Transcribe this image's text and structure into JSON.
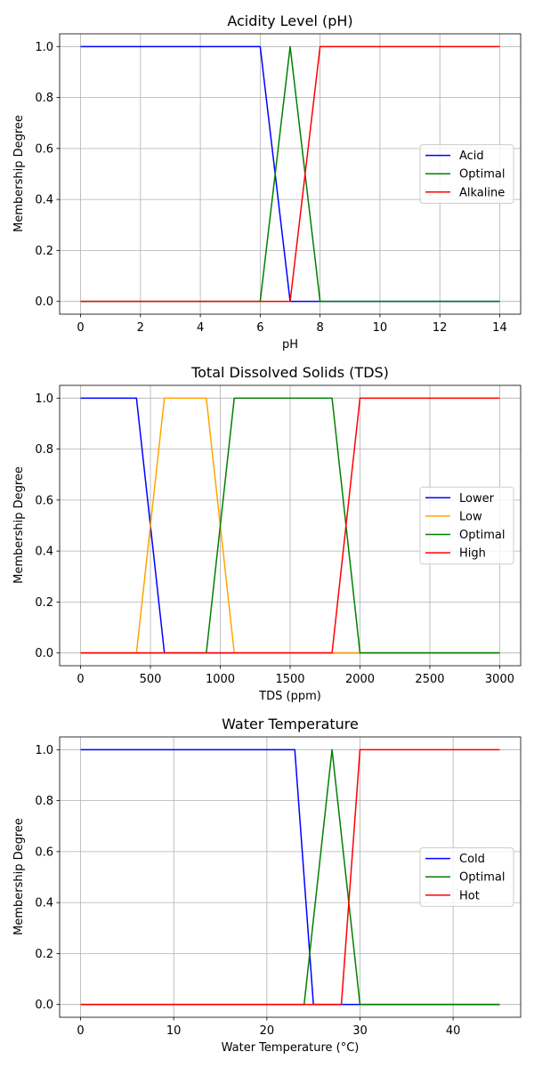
{
  "chart_data": [
    {
      "type": "line",
      "title": "Acidity Level (pH)",
      "xlabel": "pH",
      "ylabel": "Membership Degree",
      "xlim": [
        -0.7,
        14.7
      ],
      "ylim": [
        -0.05,
        1.05
      ],
      "xticks": [
        0,
        2,
        4,
        6,
        8,
        10,
        12,
        14
      ],
      "yticks": [
        0.0,
        0.2,
        0.4,
        0.6,
        0.8,
        1.0
      ],
      "xtick_labels": [
        "0",
        "2",
        "4",
        "6",
        "8",
        "10",
        "12",
        "14"
      ],
      "ytick_labels": [
        "0.0",
        "0.2",
        "0.4",
        "0.6",
        "0.8",
        "1.0"
      ],
      "grid": true,
      "legend_position": "center-right",
      "series": [
        {
          "name": "Acid",
          "color": "#0000ff",
          "x": [
            0,
            6,
            7,
            14
          ],
          "y": [
            1,
            1,
            0,
            0
          ]
        },
        {
          "name": "Optimal",
          "color": "#008000",
          "x": [
            0,
            6,
            7,
            8,
            14
          ],
          "y": [
            0,
            0,
            1,
            0,
            0
          ]
        },
        {
          "name": "Alkaline",
          "color": "#ff0000",
          "x": [
            0,
            7,
            8,
            14
          ],
          "y": [
            0,
            0,
            1,
            1
          ]
        }
      ]
    },
    {
      "type": "line",
      "title": "Total Dissolved Solids (TDS)",
      "xlabel": "TDS (ppm)",
      "ylabel": "Membership Degree",
      "xlim": [
        -150,
        3150
      ],
      "ylim": [
        -0.05,
        1.05
      ],
      "xticks": [
        0,
        500,
        1000,
        1500,
        2000,
        2500,
        3000
      ],
      "yticks": [
        0.0,
        0.2,
        0.4,
        0.6,
        0.8,
        1.0
      ],
      "xtick_labels": [
        "0",
        "500",
        "1000",
        "1500",
        "2000",
        "2500",
        "3000"
      ],
      "ytick_labels": [
        "0.0",
        "0.2",
        "0.4",
        "0.6",
        "0.8",
        "1.0"
      ],
      "grid": true,
      "legend_position": "center-right",
      "series": [
        {
          "name": "Lower",
          "color": "#0000ff",
          "x": [
            0,
            400,
            600,
            3000
          ],
          "y": [
            1,
            1,
            0,
            0
          ]
        },
        {
          "name": "Low",
          "color": "#ffa500",
          "x": [
            0,
            400,
            600,
            900,
            1100,
            3000
          ],
          "y": [
            0,
            0,
            1,
            1,
            0,
            0
          ]
        },
        {
          "name": "Optimal",
          "color": "#008000",
          "x": [
            0,
            900,
            1100,
            1800,
            2000,
            3000
          ],
          "y": [
            0,
            0,
            1,
            1,
            0,
            0
          ]
        },
        {
          "name": "High",
          "color": "#ff0000",
          "x": [
            0,
            1800,
            2000,
            3000
          ],
          "y": [
            0,
            0,
            1,
            1
          ]
        }
      ]
    },
    {
      "type": "line",
      "title": "Water Temperature",
      "xlabel": "Water Temperature (°C)",
      "ylabel": "Membership Degree",
      "xlim": [
        -2.25,
        47.25
      ],
      "ylim": [
        -0.05,
        1.05
      ],
      "xticks": [
        0,
        10,
        20,
        30,
        40
      ],
      "yticks": [
        0.0,
        0.2,
        0.4,
        0.6,
        0.8,
        1.0
      ],
      "xtick_labels": [
        "0",
        "10",
        "20",
        "30",
        "40"
      ],
      "ytick_labels": [
        "0.0",
        "0.2",
        "0.4",
        "0.6",
        "0.8",
        "1.0"
      ],
      "grid": true,
      "legend_position": "center-right",
      "series": [
        {
          "name": "Cold",
          "color": "#0000ff",
          "x": [
            0,
            23,
            25,
            45
          ],
          "y": [
            1,
            1,
            0,
            0
          ]
        },
        {
          "name": "Optimal",
          "color": "#008000",
          "x": [
            0,
            24,
            27,
            30,
            45
          ],
          "y": [
            0,
            0,
            1,
            0,
            0
          ]
        },
        {
          "name": "Hot",
          "color": "#ff0000",
          "x": [
            0,
            28,
            30,
            45
          ],
          "y": [
            0,
            0,
            1,
            1
          ]
        }
      ]
    }
  ]
}
